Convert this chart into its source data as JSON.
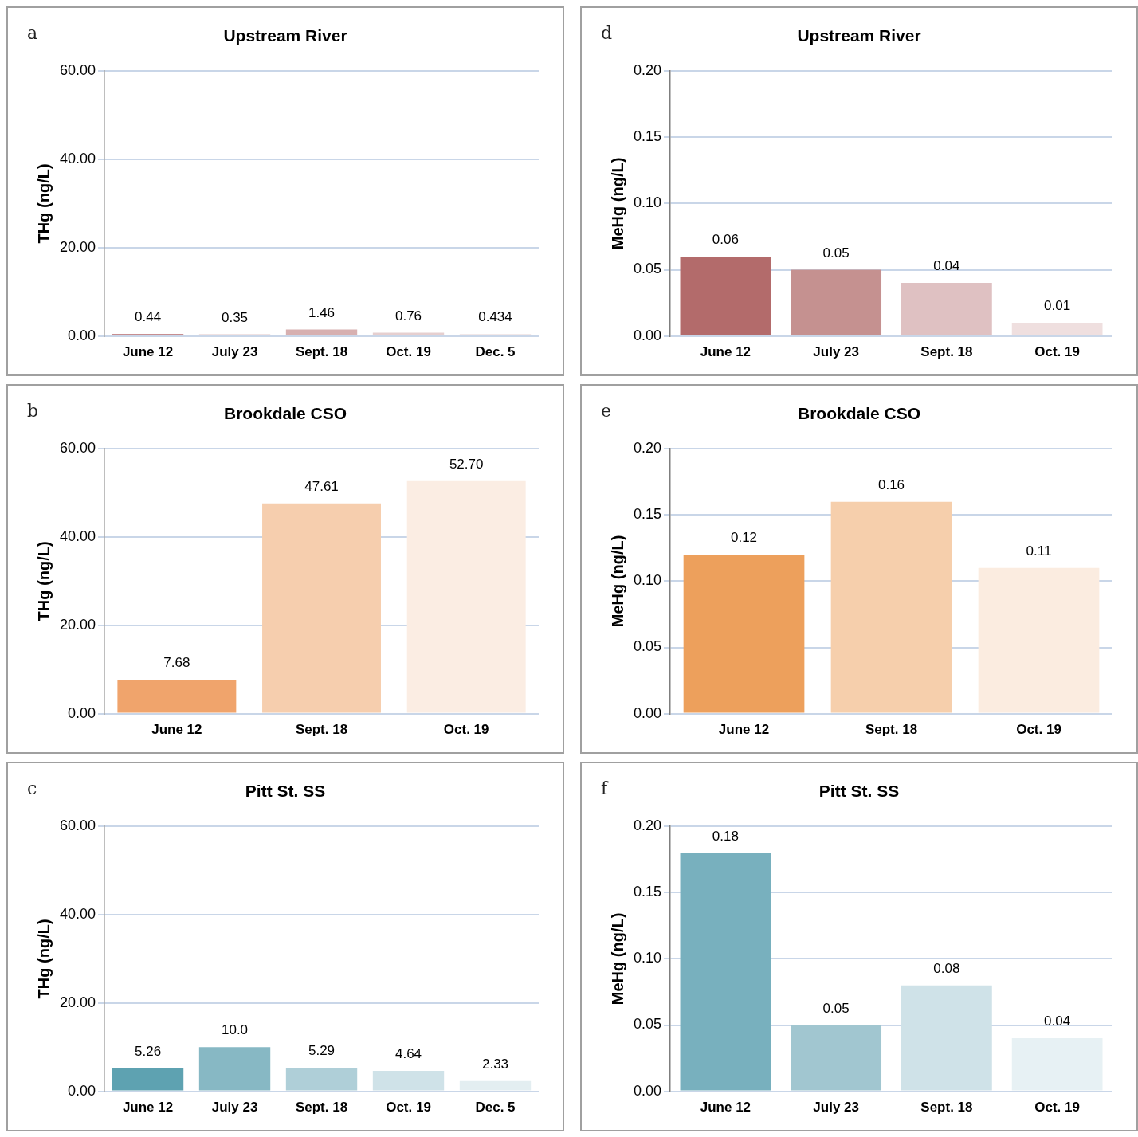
{
  "chart_data": [
    {
      "type": "bar",
      "title": "Upstream River",
      "ylabel": "THg (ng/L)",
      "annotations": [
        "a"
      ],
      "categories": [
        "June 12",
        "July 23",
        "Sept. 18",
        "Oct. 19",
        "Dec. 5"
      ],
      "values": [
        0.44,
        0.35,
        1.46,
        0.76,
        0.434
      ],
      "value_labels": [
        "0.44",
        "0.35",
        "1.46",
        "0.76",
        "0.434"
      ],
      "colors": [
        "#b5696b",
        "#c28c8c",
        "#d7b0b0",
        "#e6cfcf",
        "#eee0e0"
      ],
      "ylim": [
        0,
        60
      ],
      "yticks": [
        {
          "value": 0,
          "label": "0.00"
        },
        {
          "value": 20,
          "label": "20.00"
        },
        {
          "value": 40,
          "label": "40.00"
        },
        {
          "value": 60,
          "label": "60.00"
        }
      ],
      "grid": "y"
    },
    {
      "type": "bar",
      "title": "Upstream River",
      "ylabel": "MeHg (ng/L)",
      "annotations": [
        "d"
      ],
      "categories": [
        "June 12",
        "July 23",
        "Sept. 18",
        "Oct. 19"
      ],
      "values": [
        0.06,
        0.05,
        0.04,
        0.01
      ],
      "value_labels": [
        "0.06",
        "0.05",
        "0.04",
        "0.01"
      ],
      "colors": [
        "#b36b6b",
        "#c59190",
        "#dfc1c2",
        "#efdfdf"
      ],
      "ylim": [
        0,
        0.2
      ],
      "yticks": [
        {
          "value": 0,
          "label": "0.00"
        },
        {
          "value": 0.05,
          "label": "0.05"
        },
        {
          "value": 0.1,
          "label": "0.10"
        },
        {
          "value": 0.15,
          "label": "0.15"
        },
        {
          "value": 0.2,
          "label": "0.20"
        }
      ],
      "grid": "y"
    },
    {
      "type": "bar",
      "title": "Brookdale CSO",
      "ylabel": "THg (ng/L)",
      "annotations": [
        "b"
      ],
      "categories": [
        "June 12",
        "Sept. 18",
        "Oct. 19"
      ],
      "values": [
        7.68,
        47.61,
        52.7
      ],
      "value_labels": [
        "7.68",
        "47.61",
        "52.70"
      ],
      "colors": [
        "#f0a46c",
        "#f6ceae",
        "#fbede3"
      ],
      "ylim": [
        0,
        60
      ],
      "yticks": [
        {
          "value": 0,
          "label": "0.00"
        },
        {
          "value": 20,
          "label": "20.00"
        },
        {
          "value": 40,
          "label": "40.00"
        },
        {
          "value": 60,
          "label": "60.00"
        }
      ],
      "grid": "y"
    },
    {
      "type": "bar",
      "title": "Brookdale CSO",
      "ylabel": "MeHg (ng/L)",
      "annotations": [
        "e"
      ],
      "categories": [
        "June 12",
        "Sept. 18",
        "Oct. 19"
      ],
      "values": [
        0.12,
        0.16,
        0.11
      ],
      "value_labels": [
        "0.12",
        "0.16",
        "0.11"
      ],
      "colors": [
        "#eda05c",
        "#f6cfac",
        "#fbece0"
      ],
      "ylim": [
        0,
        0.2
      ],
      "yticks": [
        {
          "value": 0,
          "label": "0.00"
        },
        {
          "value": 0.05,
          "label": "0.05"
        },
        {
          "value": 0.1,
          "label": "0.10"
        },
        {
          "value": 0.15,
          "label": "0.15"
        },
        {
          "value": 0.2,
          "label": "0.20"
        }
      ],
      "grid": "y"
    },
    {
      "type": "bar",
      "title": "Pitt St. SS",
      "ylabel": "THg (ng/L)",
      "annotations": [
        "c"
      ],
      "categories": [
        "June 12",
        "July 23",
        "Sept. 18",
        "Oct. 19",
        "Dec. 5"
      ],
      "values": [
        5.26,
        10.0,
        5.29,
        4.64,
        2.33
      ],
      "value_labels": [
        "5.26",
        "10.0",
        "5.29",
        "4.64",
        "2.33"
      ],
      "colors": [
        "#5ea2b1",
        "#87b8c4",
        "#afcfd8",
        "#cfe2e8",
        "#e3eef1"
      ],
      "ylim": [
        0,
        60
      ],
      "yticks": [
        {
          "value": 0,
          "label": "0.00"
        },
        {
          "value": 20,
          "label": "20.00"
        },
        {
          "value": 40,
          "label": "40.00"
        },
        {
          "value": 60,
          "label": "60.00"
        }
      ],
      "grid": "y"
    },
    {
      "type": "bar",
      "title": "Pitt St. SS",
      "ylabel": "MeHg (ng/L)",
      "annotations": [
        "f"
      ],
      "categories": [
        "June 12",
        "July 23",
        "Sept. 18",
        "Oct. 19"
      ],
      "values": [
        0.18,
        0.05,
        0.08,
        0.04
      ],
      "value_labels": [
        "0.18",
        "0.05",
        "0.08",
        "0.04"
      ],
      "colors": [
        "#78b0be",
        "#a1c6d0",
        "#cfe2e8",
        "#e7f1f4"
      ],
      "ylim": [
        0,
        0.2
      ],
      "yticks": [
        {
          "value": 0,
          "label": "0.00"
        },
        {
          "value": 0.05,
          "label": "0.05"
        },
        {
          "value": 0.1,
          "label": "0.10"
        },
        {
          "value": 0.15,
          "label": "0.15"
        },
        {
          "value": 0.2,
          "label": "0.20"
        }
      ],
      "grid": "y"
    }
  ]
}
